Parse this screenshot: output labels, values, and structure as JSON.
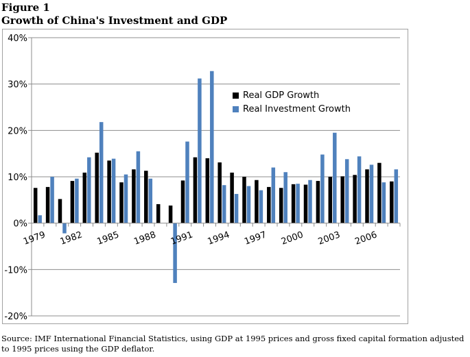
{
  "figure": {
    "label": "Figure 1",
    "title": "Growth of China's Investment and GDP",
    "source": "Source:  IMF International Financial Statistics, using GDP at 1995 prices and gross fixed capital formation adjusted to 1995 prices using the GDP deflator."
  },
  "chart_data": {
    "type": "bar",
    "categories": [
      "1979",
      "1980",
      "1981",
      "1982",
      "1983",
      "1984",
      "1985",
      "1986",
      "1987",
      "1988",
      "1989",
      "1990",
      "1991",
      "1992",
      "1993",
      "1994",
      "1995",
      "1996",
      "1997",
      "1998",
      "1999",
      "2000",
      "2001",
      "2002",
      "2003",
      "2004",
      "2005",
      "2006",
      "2007",
      "2008"
    ],
    "tick_labels": [
      "1979",
      "1982",
      "1985",
      "1988",
      "1991",
      "1994",
      "1997",
      "2000",
      "2003",
      "2006"
    ],
    "series": [
      {
        "name": "Real GDP Growth",
        "color": "#000000",
        "values": [
          7.6,
          7.8,
          5.2,
          9.1,
          10.9,
          15.2,
          13.5,
          8.8,
          11.6,
          11.3,
          4.1,
          3.8,
          9.2,
          14.2,
          14.0,
          13.1,
          10.9,
          10.0,
          9.3,
          7.8,
          7.6,
          8.4,
          8.3,
          9.1,
          10.0,
          10.1,
          10.4,
          11.6,
          13.0,
          9.0
        ]
      },
      {
        "name": "Real Investment Growth",
        "color": "#4f81bd",
        "values": [
          1.7,
          10.0,
          -2.2,
          9.6,
          14.2,
          21.8,
          13.9,
          10.5,
          15.5,
          9.6,
          null,
          -12.9,
          17.6,
          31.2,
          32.8,
          8.2,
          6.3,
          8.0,
          7.1,
          12.0,
          11.0,
          8.5,
          9.3,
          14.8,
          19.5,
          13.8,
          14.4,
          12.6,
          8.8,
          11.6
        ]
      }
    ],
    "ylim": [
      -20,
      40
    ],
    "yticks": [
      -20,
      -10,
      0,
      10,
      20,
      30,
      40
    ],
    "ytick_format": "percent",
    "grid": true,
    "legend_position": "upper-right-inside",
    "xlabel": "",
    "ylabel": ""
  }
}
